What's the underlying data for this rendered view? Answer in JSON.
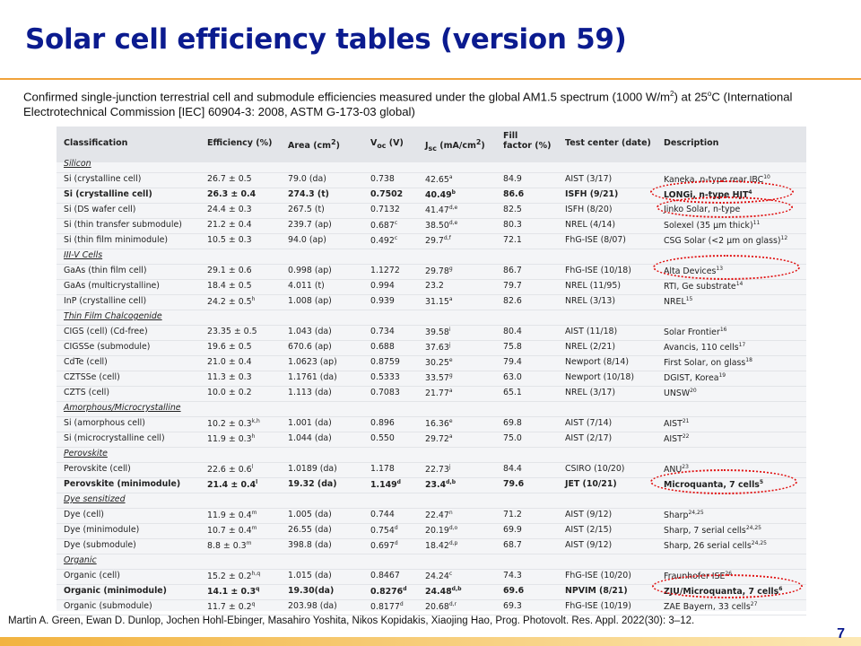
{
  "title": "Solar cell efficiency tables (version 59)",
  "intro": {
    "text_before": "Confirmed single-junction terrestrial cell and submodule efficiencies measured under the global AM1.5 spectrum (1000 W/m",
    "sup1": "2",
    "text_mid": ") at 25",
    "sup2": "o",
    "text_after": "C (International  Electrotechnical Commission [IEC] 60904-3: 2008, ASTM G-173-03 global)"
  },
  "headers": {
    "classification": "Classification",
    "efficiency": "Efficiency (%)",
    "area_label": "Area (cm",
    "area_sup": "2",
    "area_close": ")",
    "voc_base": "V",
    "voc_sub": "oc",
    "voc_unit": " (V)",
    "jsc_base": "J",
    "jsc_sub": "sc",
    "jsc_unit": " (mA/cm",
    "jsc_sup": "2",
    "jsc_close": ")",
    "fill_line1": "Fill",
    "fill_line2": "factor (%)",
    "center": "Test center (date)",
    "description": "Description"
  },
  "rows": [
    {
      "section": "Silicon"
    },
    {
      "name": "Si (crystalline cell)",
      "eff": "26.7 ± 0.5",
      "eff_sup": "",
      "area": "79.0 (da)",
      "voc": "0.738",
      "voc_sup": "",
      "jsc": "42.65",
      "jsc_sup": "a",
      "ff": "84.9",
      "center": "AIST (3/17)",
      "desc": "Kaneka, n-type rear IBC",
      "desc_sup": "10"
    },
    {
      "name": "Si (crystalline cell)",
      "eff": "26.3 ± 0.4",
      "eff_sup": "",
      "area": "274.3 (t)",
      "voc": "0.7502",
      "voc_sup": "",
      "jsc": "40.49",
      "jsc_sup": "b",
      "ff": "86.6",
      "center": "ISFH (9/21)",
      "desc": "LONGi, n-type HJT",
      "desc_sup": "4",
      "bold": true
    },
    {
      "name": "Si (DS wafer cell)",
      "eff": "24.4 ± 0.3",
      "eff_sup": "",
      "area": "267.5 (t)",
      "voc": "0.7132",
      "voc_sup": "",
      "jsc": "41.47",
      "jsc_sup": "d,e",
      "ff": "82.5",
      "center": "ISFH (8/20)",
      "desc": "Jinko Solar, n-type",
      "desc_sup": ""
    },
    {
      "name": "Si (thin transfer submodule)",
      "eff": "21.2 ± 0.4",
      "eff_sup": "",
      "area": "239.7 (ap)",
      "voc": "0.687",
      "voc_sup": "c",
      "jsc": "38.50",
      "jsc_sup": "d,e",
      "ff": "80.3",
      "center": "NREL (4/14)",
      "desc": "Solexel (35 μm thick)",
      "desc_sup": "11"
    },
    {
      "name": "Si (thin film minimodule)",
      "eff": "10.5 ± 0.3",
      "eff_sup": "",
      "area": "94.0 (ap)",
      "voc": "0.492",
      "voc_sup": "c",
      "jsc": "29.7",
      "jsc_sup": "d,f",
      "ff": "72.1",
      "center": "FhG-ISE (8/07)",
      "desc": "CSG Solar (<2 μm on glass)",
      "desc_sup": "12"
    },
    {
      "section": "III-V Cells"
    },
    {
      "name": "GaAs (thin film cell)",
      "eff": "29.1 ± 0.6",
      "eff_sup": "",
      "area": "0.998 (ap)",
      "voc": "1.1272",
      "voc_sup": "",
      "jsc": "29.78",
      "jsc_sup": "g",
      "ff": "86.7",
      "center": "FhG-ISE (10/18)",
      "desc": "Alta Devices",
      "desc_sup": "13"
    },
    {
      "name": "GaAs (multicrystalline)",
      "eff": "18.4 ± 0.5",
      "eff_sup": "",
      "area": "4.011 (t)",
      "voc": "0.994",
      "voc_sup": "",
      "jsc": "23.2",
      "jsc_sup": "",
      "ff": "79.7",
      "center": "NREL (11/95)",
      "desc": "RTI, Ge substrate",
      "desc_sup": "14"
    },
    {
      "name": "InP (crystalline cell)",
      "eff": "24.2 ± 0.5",
      "eff_sup": "h",
      "area": "1.008 (ap)",
      "voc": "0.939",
      "voc_sup": "",
      "jsc": "31.15",
      "jsc_sup": "a",
      "ff": "82.6",
      "center": "NREL (3/13)",
      "desc": "NREL",
      "desc_sup": "15"
    },
    {
      "section": "Thin Film Chalcogenide"
    },
    {
      "name": "CIGS (cell) (Cd-free)",
      "eff": "23.35 ± 0.5",
      "eff_sup": "",
      "area": "1.043 (da)",
      "voc": "0.734",
      "voc_sup": "",
      "jsc": "39.58",
      "jsc_sup": "i",
      "ff": "80.4",
      "center": "AIST (11/18)",
      "desc": "Solar Frontier",
      "desc_sup": "16"
    },
    {
      "name": "CIGSSe (submodule)",
      "eff": "19.6 ± 0.5",
      "eff_sup": "",
      "area": "670.6 (ap)",
      "voc": "0.688",
      "voc_sup": "",
      "jsc": "37.63",
      "jsc_sup": "j",
      "ff": "75.8",
      "center": "NREL (2/21)",
      "desc": "Avancis, 110 cells",
      "desc_sup": "17"
    },
    {
      "name": "CdTe (cell)",
      "eff": "21.0 ± 0.4",
      "eff_sup": "",
      "area": "1.0623 (ap)",
      "voc": "0.8759",
      "voc_sup": "",
      "jsc": "30.25",
      "jsc_sup": "e",
      "ff": "79.4",
      "center": "Newport (8/14)",
      "desc": "First Solar, on glass",
      "desc_sup": "18"
    },
    {
      "name": "CZTSSe (cell)",
      "eff": "11.3 ± 0.3",
      "eff_sup": "",
      "area": "1.1761 (da)",
      "voc": "0.5333",
      "voc_sup": "",
      "jsc": "33.57",
      "jsc_sup": "g",
      "ff": "63.0",
      "center": "Newport (10/18)",
      "desc": "DGIST, Korea",
      "desc_sup": "19"
    },
    {
      "name": "CZTS (cell)",
      "eff": "10.0 ± 0.2",
      "eff_sup": "",
      "area": "1.113 (da)",
      "voc": "0.7083",
      "voc_sup": "",
      "jsc": "21.77",
      "jsc_sup": "a",
      "ff": "65.1",
      "center": "NREL (3/17)",
      "desc": "UNSW",
      "desc_sup": "20"
    },
    {
      "section": "Amorphous/Microcrystalline"
    },
    {
      "name": "Si (amorphous cell)",
      "eff": "10.2 ± 0.3",
      "eff_sup": "k,h",
      "area": "1.001 (da)",
      "voc": "0.896",
      "voc_sup": "",
      "jsc": "16.36",
      "jsc_sup": "e",
      "ff": "69.8",
      "center": "AIST (7/14)",
      "desc": "AIST",
      "desc_sup": "21"
    },
    {
      "name": "Si (microcrystalline cell)",
      "eff": "11.9 ± 0.3",
      "eff_sup": "h",
      "area": "1.044 (da)",
      "voc": "0.550",
      "voc_sup": "",
      "jsc": "29.72",
      "jsc_sup": "a",
      "ff": "75.0",
      "center": "AIST (2/17)",
      "desc": "AIST",
      "desc_sup": "22"
    },
    {
      "section": "Perovskite"
    },
    {
      "name": "Perovskite (cell)",
      "eff": "22.6 ± 0.6",
      "eff_sup": "l",
      "area": "1.0189 (da)",
      "voc": "1.178",
      "voc_sup": "",
      "jsc": "22.73",
      "jsc_sup": "j",
      "ff": "84.4",
      "center": "CSIRO (10/20)",
      "desc": "ANU",
      "desc_sup": "23"
    },
    {
      "name": "Perovskite (minimodule)",
      "eff": "21.4 ± 0.4",
      "eff_sup": "l",
      "area": "19.32 (da)",
      "voc": "1.149",
      "voc_sup": "d",
      "jsc": "23.4",
      "jsc_sup": "d,b",
      "ff": "79.6",
      "center": "JET (10/21)",
      "desc": "Microquanta, 7 cells",
      "desc_sup": "5",
      "bold": true
    },
    {
      "section": "Dye sensitized"
    },
    {
      "name": "Dye (cell)",
      "eff": "11.9 ± 0.4",
      "eff_sup": "m",
      "area": "1.005 (da)",
      "voc": "0.744",
      "voc_sup": "",
      "jsc": "22.47",
      "jsc_sup": "n",
      "ff": "71.2",
      "center": "AIST (9/12)",
      "desc": "Sharp",
      "desc_sup": "24,25"
    },
    {
      "name": "Dye (minimodule)",
      "eff": "10.7 ± 0.4",
      "eff_sup": "m",
      "area": "26.55 (da)",
      "voc": "0.754",
      "voc_sup": "d",
      "jsc": "20.19",
      "jsc_sup": "d,o",
      "ff": "69.9",
      "center": "AIST (2/15)",
      "desc": "Sharp, 7 serial cells",
      "desc_sup": "24,25"
    },
    {
      "name": "Dye (submodule)",
      "eff": "8.8 ± 0.3",
      "eff_sup": "m",
      "area": "398.8 (da)",
      "voc": "0.697",
      "voc_sup": "d",
      "jsc": "18.42",
      "jsc_sup": "d,p",
      "ff": "68.7",
      "center": "AIST (9/12)",
      "desc": "Sharp, 26 serial cells",
      "desc_sup": "24,25"
    },
    {
      "section": "Organic"
    },
    {
      "name": "Organic (cell)",
      "eff": "15.2 ± 0.2",
      "eff_sup": "h,q",
      "area": "1.015 (da)",
      "voc": "0.8467",
      "voc_sup": "",
      "jsc": "24.24",
      "jsc_sup": "c",
      "ff": "74.3",
      "center": "FhG-ISE (10/20)",
      "desc": "Fraunhofer ISE",
      "desc_sup": "26"
    },
    {
      "name": "Organic (minimodule)",
      "eff": "14.1 ± 0.3",
      "eff_sup": "q",
      "area": "19.30(da)",
      "voc": "0.8276",
      "voc_sup": "d",
      "jsc": "24.48",
      "jsc_sup": "d,b",
      "ff": "69.6",
      "center": "NPVIM (8/21)",
      "desc": "ZJU/Microquanta, 7 cells",
      "desc_sup": "6",
      "bold": true
    },
    {
      "name": "Organic (submodule)",
      "eff": "11.7 ± 0.2",
      "eff_sup": "q",
      "area": "203.98 (da)",
      "voc": "0.8177",
      "voc_sup": "d",
      "jsc": "20.68",
      "jsc_sup": "d,r",
      "ff": "69.3",
      "center": "FhG-ISE (10/19)",
      "desc": "ZAE Bayern, 33 cells",
      "desc_sup": "27"
    }
  ],
  "highlight_color": "#e01010",
  "footer": "Martin A. Green, Ewan D. Dunlop, Jochen Hohl-Ebinger,  Masahiro Yoshita, Nikos Kopidakis, Xiaojing Hao, Prog. Photovolt. Res. Appl. 2022(30): 3–12.",
  "page_number": "7"
}
